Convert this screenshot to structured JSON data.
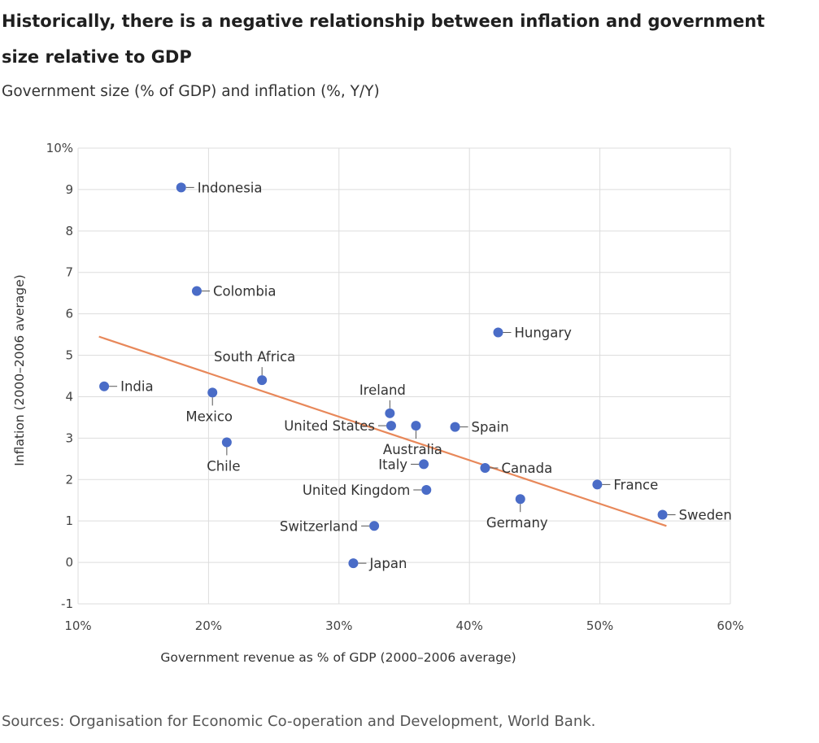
{
  "title": "Historically, there is a negative relationship between inflation and government size relative to GDP",
  "subtitle": "Government size (% of GDP) and inflation (%, Y/Y)",
  "source": "Sources: Organisation for Economic Co-operation and Development, World Bank.",
  "colors": {
    "point": "#4a6cc7",
    "trendline": "#e8885a",
    "grid": "#dddddd"
  },
  "chart_data": {
    "type": "scatter",
    "xlabel": "Government revenue as % of GDP (2000–2006 average)",
    "ylabel": "Inflation (2000–2006 average)",
    "xlim": [
      10,
      60
    ],
    "ylim": [
      -1,
      10
    ],
    "x_ticks": [
      {
        "value": 10,
        "label": "10%"
      },
      {
        "value": 20,
        "label": "20%"
      },
      {
        "value": 30,
        "label": "30%"
      },
      {
        "value": 40,
        "label": "40%"
      },
      {
        "value": 50,
        "label": "50%"
      },
      {
        "value": 60,
        "label": "60%"
      }
    ],
    "y_ticks": [
      {
        "value": 10,
        "label": "10%"
      },
      {
        "value": 9,
        "label": "9"
      },
      {
        "value": 8,
        "label": "8"
      },
      {
        "value": 7,
        "label": "7"
      },
      {
        "value": 6,
        "label": "6"
      },
      {
        "value": 5,
        "label": "5"
      },
      {
        "value": 4,
        "label": "4"
      },
      {
        "value": 3,
        "label": "3"
      },
      {
        "value": 2,
        "label": "2"
      },
      {
        "value": 1,
        "label": "1"
      },
      {
        "value": 0,
        "label": "0"
      },
      {
        "value": -1,
        "label": "-1"
      }
    ],
    "grid": true,
    "points": [
      {
        "name": "Indonesia",
        "x": 17.9,
        "y": 9.05,
        "label_pos": "right"
      },
      {
        "name": "Colombia",
        "x": 19.1,
        "y": 6.55,
        "label_pos": "right"
      },
      {
        "name": "India",
        "x": 12.0,
        "y": 4.25,
        "label_pos": "right"
      },
      {
        "name": "Mexico",
        "x": 20.3,
        "y": 4.1,
        "label_pos": "below"
      },
      {
        "name": "Chile",
        "x": 21.4,
        "y": 2.9,
        "label_pos": "below"
      },
      {
        "name": "South Africa",
        "x": 24.1,
        "y": 4.4,
        "label_pos": "above"
      },
      {
        "name": "Ireland",
        "x": 33.9,
        "y": 3.6,
        "label_pos": "above"
      },
      {
        "name": "United States",
        "x": 34.0,
        "y": 3.3,
        "label_pos": "left"
      },
      {
        "name": "Australia",
        "x": 35.9,
        "y": 3.3,
        "label_pos": "below"
      },
      {
        "name": "Spain",
        "x": 38.9,
        "y": 3.27,
        "label_pos": "right"
      },
      {
        "name": "Italy",
        "x": 36.5,
        "y": 2.37,
        "label_pos": "left"
      },
      {
        "name": "United Kingdom",
        "x": 36.7,
        "y": 1.75,
        "label_pos": "left"
      },
      {
        "name": "Hungary",
        "x": 42.2,
        "y": 5.55,
        "label_pos": "right"
      },
      {
        "name": "Canada",
        "x": 41.2,
        "y": 2.28,
        "label_pos": "right"
      },
      {
        "name": "Germany",
        "x": 43.9,
        "y": 1.53,
        "label_pos": "below"
      },
      {
        "name": "France",
        "x": 49.8,
        "y": 1.88,
        "label_pos": "right"
      },
      {
        "name": "Sweden",
        "x": 54.8,
        "y": 1.15,
        "label_pos": "right"
      },
      {
        "name": "Switzerland",
        "x": 32.7,
        "y": 0.88,
        "label_pos": "left"
      },
      {
        "name": "Japan",
        "x": 31.1,
        "y": -0.02,
        "label_pos": "right"
      }
    ],
    "trendline": {
      "x": [
        11.6,
        55.1
      ],
      "y": [
        5.45,
        0.88
      ]
    }
  }
}
